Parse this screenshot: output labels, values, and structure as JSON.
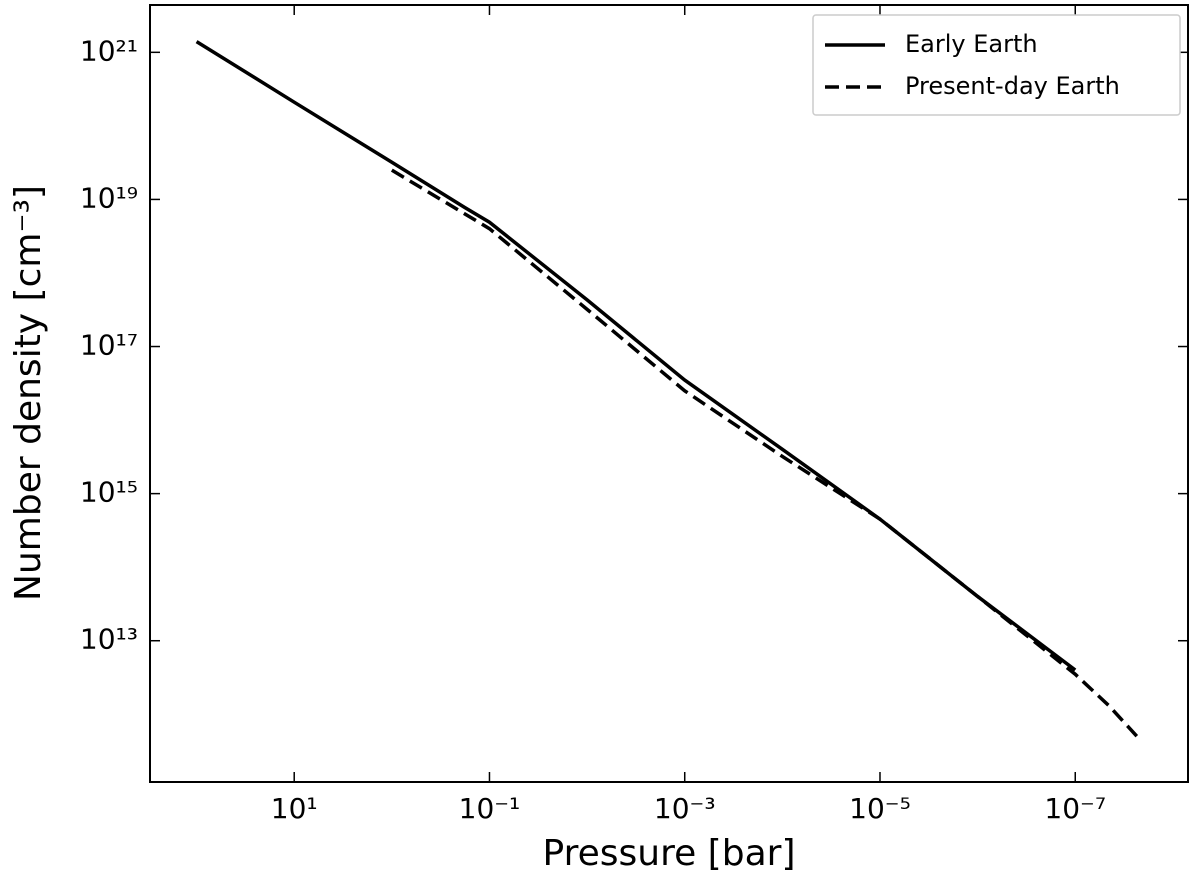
{
  "chart_data": {
    "type": "line",
    "xlabel": "Pressure [bar]",
    "ylabel": "Number density [cm⁻³]",
    "xscale": "log",
    "yscale": "log",
    "xlim": [
      300,
      7e-09
    ],
    "ylim": [
      120000000000.0,
      4.4e+21
    ],
    "xticks": [
      {
        "value": 10,
        "label": "10¹"
      },
      {
        "value": 0.1,
        "label": "10⁻¹"
      },
      {
        "value": 0.001,
        "label": "10⁻³"
      },
      {
        "value": 1e-05,
        "label": "10⁻⁵"
      },
      {
        "value": 1e-07,
        "label": "10⁻⁷"
      }
    ],
    "yticks": [
      {
        "value": 10000000000000.0,
        "label": "10¹³"
      },
      {
        "value": 1000000000000000.0,
        "label": "10¹⁵"
      },
      {
        "value": 1e+17,
        "label": "10¹⁷"
      },
      {
        "value": 1e+19,
        "label": "10¹⁹"
      },
      {
        "value": 1e+21,
        "label": "10²¹"
      }
    ],
    "grid": false,
    "legend": "upper right",
    "series": [
      {
        "name": "Early Earth",
        "color": "#000000",
        "dash": "solid",
        "x": [
          100,
          10,
          1,
          0.18,
          0.1,
          0.01,
          0.001,
          0.0001,
          1e-05,
          1e-06,
          1e-07
        ],
        "values": [
          1.4e+21,
          2.1e+20,
          3.2e+19,
          7.8e+18,
          4.9e+18,
          4.3e+17,
          3.5e+16,
          4000000000000000.0,
          450000000000000.0,
          40000000000000.0,
          4000000000000.0
        ]
      },
      {
        "name": "Present-day Earth",
        "color": "#000000",
        "dash": "dashed",
        "x": [
          1,
          0.1,
          0.01,
          0.001,
          0.0001,
          1e-05,
          1e-06,
          1e-07,
          4.5e-08,
          2.1e-08
        ],
        "values": [
          2.5e+19,
          4e+18,
          3.2e+17,
          2.5e+16,
          3200000000000000.0,
          450000000000000.0,
          40000000000000.0,
          3500000000000.0,
          1300000000000.0,
          430000000000.0
        ]
      }
    ]
  }
}
